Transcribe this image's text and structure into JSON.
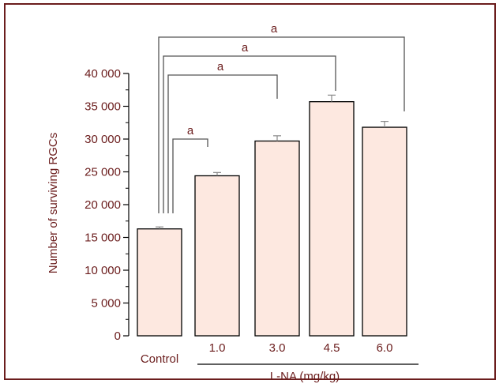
{
  "chart_data": {
    "type": "bar",
    "categories": [
      "Control",
      "1.0",
      "3.0",
      "4.5",
      "6.0"
    ],
    "values": [
      16300,
      24400,
      29700,
      35700,
      31800
    ],
    "errors": [
      300,
      500,
      800,
      1000,
      900
    ],
    "ylabel": "Number of surviving RGCs",
    "xlabel": "L-NA (mg/kg)",
    "ylim": [
      0,
      40000
    ],
    "yticks": [
      0,
      5000,
      10000,
      15000,
      20000,
      25000,
      30000,
      35000,
      40000
    ],
    "ytick_labels": [
      "0",
      "5 000",
      "10 000",
      "15 000",
      "20 000",
      "25 000",
      "30 000",
      "35 000",
      "40 000"
    ],
    "significance": [
      {
        "from": "Control",
        "to": "1.0",
        "label": "a"
      },
      {
        "from": "Control",
        "to": "3.0",
        "label": "a"
      },
      {
        "from": "Control",
        "to": "4.5",
        "label": "a"
      },
      {
        "from": "Control",
        "to": "6.0",
        "label": "a"
      }
    ],
    "grid": false,
    "colors": {
      "bar_fill": "#fde8e0",
      "bar_stroke": "#000000",
      "axis_text": "#6b1d1d",
      "bracket": "#555555",
      "error_bar": "#888888"
    }
  }
}
